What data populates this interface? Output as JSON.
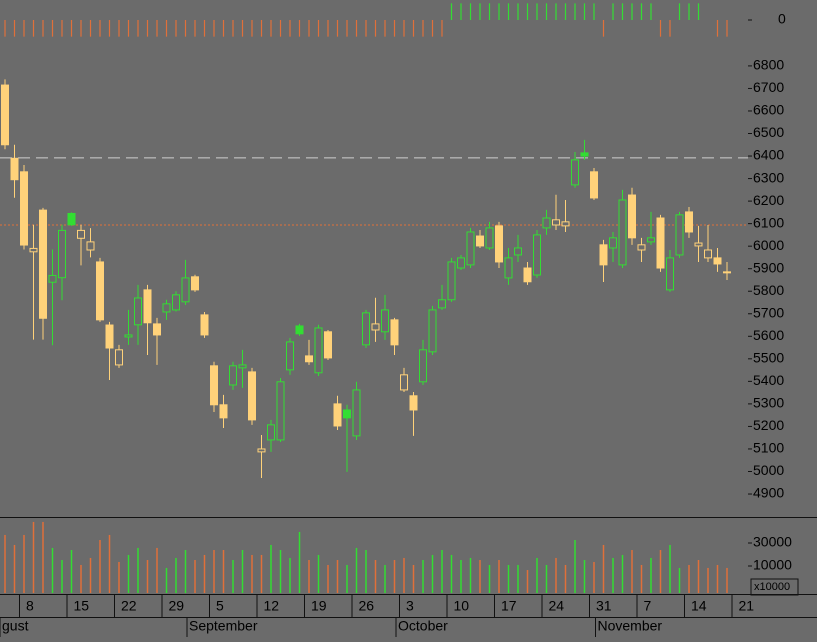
{
  "chart_data": [
    {
      "type": "signal",
      "ylim": [
        -1.2,
        1.2
      ],
      "yticks": [
        0
      ],
      "colors": {
        "up": "#33dd33",
        "down": "#e0703a"
      },
      "values": [
        -1,
        -1,
        -1,
        -1,
        -1,
        -1,
        -1,
        -1,
        -1,
        -1,
        -1,
        -1,
        -1,
        -1,
        -1,
        -1,
        -1,
        -1,
        -1,
        -1,
        -1,
        -1,
        -1,
        -1,
        -1,
        -1,
        -1,
        -1,
        -1,
        -1,
        -1,
        -1,
        -1,
        -1,
        -1,
        -1,
        -1,
        -1,
        -1,
        -1,
        -1,
        -1,
        -1,
        -1,
        -1,
        -1,
        -1,
        1,
        1,
        1,
        1,
        1,
        1,
        1,
        1,
        1,
        1,
        1,
        1,
        1,
        1,
        1,
        1,
        -1,
        1,
        1,
        1,
        1,
        1,
        -1,
        -1,
        1,
        1,
        1,
        null,
        -1,
        -1,
        null
      ]
    },
    {
      "type": "candlestick",
      "ylim": [
        4798,
        6915
      ],
      "yticks": [
        4900,
        5000,
        5100,
        5200,
        5300,
        5400,
        5500,
        5600,
        5700,
        5800,
        5900,
        6000,
        6100,
        6200,
        6300,
        6400,
        6500,
        6600,
        6700,
        6800
      ],
      "colors": {
        "up": "#33dd33",
        "down": "#ffd27a"
      },
      "categories": [
        null,
        null,
        "8",
        null,
        null,
        null,
        null,
        "15",
        null,
        null,
        null,
        null,
        "22",
        null,
        null,
        null,
        null,
        "29",
        null,
        null,
        null,
        null,
        "5",
        null,
        null,
        null,
        null,
        "12",
        null,
        null,
        null,
        null,
        "19",
        null,
        null,
        null,
        null,
        "26",
        null,
        null,
        null,
        null,
        "3",
        null,
        null,
        null,
        null,
        "10",
        null,
        null,
        null,
        null,
        "17",
        null,
        null,
        null,
        null,
        "24",
        null,
        null,
        null,
        null,
        "31",
        null,
        null,
        null,
        null,
        "7",
        null,
        null,
        null,
        null,
        "14",
        null,
        null,
        null,
        null,
        "21"
      ],
      "months": [
        "gust",
        null,
        null,
        null,
        null,
        null,
        null,
        null,
        null,
        null,
        null,
        null,
        null,
        null,
        null,
        null,
        null,
        null,
        null,
        null,
        "September",
        null,
        null,
        null,
        null,
        null,
        null,
        null,
        null,
        null,
        null,
        null,
        null,
        null,
        null,
        null,
        null,
        null,
        null,
        null,
        null,
        null,
        "October",
        null,
        null,
        null,
        null,
        null,
        null,
        null,
        null,
        null,
        null,
        null,
        null,
        null,
        null,
        null,
        null,
        null,
        null,
        null,
        null,
        "November",
        null,
        null,
        null,
        null,
        null,
        null,
        null,
        null,
        null,
        null,
        null,
        null,
        null,
        null
      ],
      "open": [
        6715,
        6390,
        6330,
        5975,
        6160,
        5840,
        5860,
        6145,
        6035,
        5983,
        5930,
        5650,
        5473,
        5597,
        5651,
        5806,
        5655,
        5708,
        5717,
        5753,
        5864,
        5695,
        5469,
        5296,
        5384,
        5460,
        5442,
        5087,
        5140,
        5140,
        5451,
        5646,
        5513,
        5438,
        5620,
        5300,
        5273,
        5158,
        5562,
        5628,
        5620,
        5673,
        5362,
        5336,
        5398,
        5531,
        5726,
        5762,
        5903,
        5917,
        6045,
        5992,
        6090,
        5859,
        5961,
        5903,
        5872,
        6081,
        6094,
        6090,
        6272,
        6414,
        6330,
        6006,
        5992,
        5917,
        6227,
        5983,
        6019,
        6125,
        5806,
        5961,
        6152,
        6001,
        5948,
        5948,
        5886,
        null
      ],
      "high": [
        6740,
        6450,
        6360,
        6095,
        6170,
        5985,
        6095,
        6150,
        6095,
        6080,
        5948,
        5664,
        5562,
        5717,
        5828,
        5828,
        5682,
        5762,
        5800,
        5939,
        5873,
        5708,
        5487,
        5340,
        5487,
        5540,
        5460,
        5162,
        5229,
        5415,
        5593,
        5655,
        5584,
        5651,
        5628,
        5336,
        5296,
        5398,
        5717,
        5771,
        5784,
        5682,
        5460,
        5353,
        5584,
        5735,
        5828,
        5948,
        5961,
        6081,
        6072,
        6108,
        6108,
        5992,
        6050,
        5930,
        6072,
        6161,
        6228,
        6205,
        6418,
        6472,
        6347,
        6028,
        6063,
        6250,
        6259,
        6037,
        6152,
        6139,
        5983,
        6152,
        6174,
        6090,
        6094,
        5992,
        5930,
        null
      ],
      "low": [
        6430,
        6215,
        5985,
        5585,
        5585,
        5560,
        5760,
        6090,
        5915,
        5950,
        5664,
        5406,
        5460,
        5562,
        5562,
        5517,
        5473,
        5673,
        5710,
        5739,
        5797,
        5593,
        5264,
        5193,
        5362,
        5371,
        5207,
        4971,
        5087,
        5131,
        5429,
        5602,
        5473,
        5424,
        5495,
        5184,
        4998,
        5140,
        5548,
        5575,
        5584,
        5517,
        5353,
        5158,
        5384,
        5517,
        5717,
        5753,
        5894,
        5903,
        5992,
        5983,
        5903,
        5828,
        5930,
        5828,
        5859,
        6050,
        6072,
        6063,
        6259,
        6383,
        6205,
        5841,
        5930,
        5903,
        6006,
        5930,
        6006,
        5886,
        5797,
        5948,
        6037,
        5930,
        5930,
        5886,
        5850,
        null
      ],
      "close": [
        6450,
        6295,
        6005,
        5990,
        5680,
        5870,
        6070,
        6095,
        6070,
        6019,
        5673,
        5548,
        5540,
        5606,
        5770,
        5660,
        5606,
        5744,
        5784,
        5859,
        5806,
        5606,
        5296,
        5238,
        5469,
        5473,
        5229,
        5100,
        5207,
        5398,
        5575,
        5611,
        5487,
        5637,
        5504,
        5202,
        5238,
        5362,
        5704,
        5655,
        5717,
        5562,
        5429,
        5273,
        5540,
        5717,
        5762,
        5930,
        5948,
        6063,
        6001,
        6081,
        5930,
        5948,
        5992,
        5842,
        6050,
        6125,
        6117,
        6108,
        6383,
        6400,
        6214,
        5917,
        6037,
        6205,
        6037,
        6006,
        6037,
        5903,
        5948,
        6139,
        6063,
        6014,
        5983,
        5921,
        5886,
        null
      ],
      "reference_lines": [
        {
          "value": 6392,
          "color": "#cfcfcf",
          "dash": "12 6"
        },
        {
          "value": 6094,
          "color": "#e0703a",
          "dash": "2 2"
        }
      ]
    },
    {
      "type": "volume",
      "ylim": [
        -13478,
        52609
      ],
      "yticks": [
        10000,
        30000
      ],
      "unit_label": "x10000",
      "colors": {
        "up": "#33dd33",
        "down": "#e0703a"
      },
      "values": [
        37000,
        28300,
        37000,
        48300,
        48300,
        25700,
        15200,
        23900,
        10900,
        17000,
        32600,
        37000,
        13500,
        19600,
        25700,
        15200,
        25700,
        8300,
        17000,
        23900,
        15200,
        19600,
        23900,
        23900,
        15200,
        23900,
        19600,
        19600,
        28300,
        23900,
        17000,
        39600,
        15200,
        19600,
        10900,
        15200,
        10900,
        25700,
        23900,
        15200,
        10900,
        15200,
        17000,
        10900,
        15200,
        19600,
        23900,
        19600,
        15200,
        17000,
        15200,
        10900,
        15200,
        10900,
        10900,
        6500,
        17000,
        10900,
        17000,
        10900,
        32600,
        15200,
        13500,
        28300,
        17000,
        19600,
        23900,
        10900,
        17000,
        23900,
        28300,
        8300,
        10900,
        15200,
        8300,
        10900,
        8300,
        null
      ]
    }
  ]
}
